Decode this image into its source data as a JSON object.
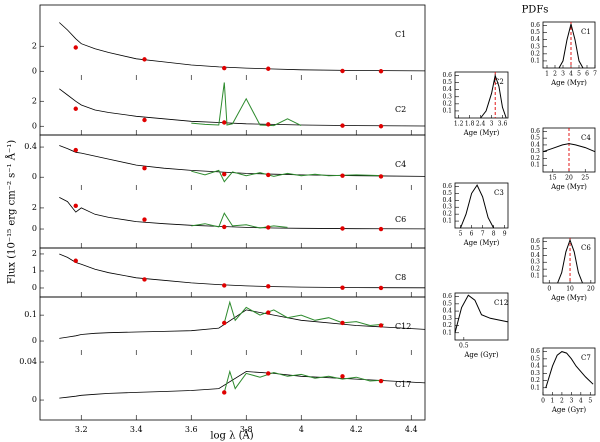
{
  "figure": {
    "ylabel": "Flux (10⁻¹⁵ erg cm⁻² s⁻¹ Å⁻¹)",
    "xlabel": "log λ (Å)",
    "pdf_title": "PDFs"
  },
  "chart_data": [
    {
      "type": "line",
      "label": "C1",
      "xlim": [
        3.05,
        4.45
      ],
      "xticks": [
        3.2,
        3.4,
        3.6,
        3.8,
        4,
        4.2,
        4.4
      ],
      "ylim": [
        -0.7,
        5.3
      ],
      "yticks": [
        0,
        2
      ],
      "series": [
        {
          "color": "#000000",
          "x": [
            3.12,
            3.15,
            3.18,
            3.2,
            3.25,
            3.3,
            3.4,
            3.5,
            3.6,
            3.7,
            3.8,
            3.9,
            4.0,
            4.2,
            4.45
          ],
          "values": [
            3.9,
            3.3,
            2.6,
            2.2,
            1.8,
            1.5,
            1.0,
            0.75,
            0.5,
            0.35,
            0.25,
            0.18,
            0.12,
            0.06,
            0.03
          ]
        },
        {
          "color": "#e00000",
          "marker": "dot",
          "x": [
            3.18,
            3.43,
            3.72,
            3.88,
            4.15,
            4.29
          ],
          "values": [
            1.9,
            0.95,
            0.25,
            0.2,
            0.02,
            0.0
          ]
        }
      ]
    },
    {
      "type": "line",
      "label": "C2",
      "xlim": [
        3.05,
        4.45
      ],
      "xticks": [
        3.2,
        3.4,
        3.6,
        3.8,
        4,
        4.2,
        4.4
      ],
      "ylim": [
        -0.7,
        3.7
      ],
      "yticks": [
        0,
        2
      ],
      "series": [
        {
          "color": "#000000",
          "x": [
            3.12,
            3.15,
            3.18,
            3.2,
            3.25,
            3.3,
            3.4,
            3.5,
            3.6,
            3.7,
            3.8,
            3.9,
            4.0,
            4.2,
            4.45
          ],
          "values": [
            3.0,
            2.5,
            2.0,
            1.7,
            1.3,
            1.1,
            0.8,
            0.6,
            0.4,
            0.3,
            0.2,
            0.15,
            0.1,
            0.05,
            0.02
          ]
        },
        {
          "color": "#2e8b2e",
          "x": [
            3.6,
            3.65,
            3.7,
            3.72,
            3.73,
            3.75,
            3.8,
            3.85,
            3.9,
            3.95,
            4.0
          ],
          "values": [
            0.25,
            0.15,
            0.1,
            3.5,
            0.1,
            0.2,
            2.2,
            0.1,
            0.05,
            0.6,
            0.05
          ]
        },
        {
          "color": "#e00000",
          "marker": "dot",
          "x": [
            3.18,
            3.43,
            3.72,
            3.88,
            4.15,
            4.29
          ],
          "values": [
            1.4,
            0.5,
            0.3,
            0.15,
            0.05,
            0.0
          ]
        }
      ]
    },
    {
      "type": "line",
      "label": "C4",
      "xlim": [
        3.05,
        4.45
      ],
      "xticks": [
        3.2,
        3.4,
        3.6,
        3.8,
        4,
        4.2,
        4.4
      ],
      "ylim": [
        -0.17,
        0.56
      ],
      "yticks": [
        0,
        0.4
      ],
      "series": [
        {
          "color": "#000000",
          "x": [
            3.12,
            3.15,
            3.18,
            3.2,
            3.25,
            3.3,
            3.4,
            3.5,
            3.6,
            3.7,
            3.8,
            3.9,
            4.0,
            4.2,
            4.45
          ],
          "values": [
            0.42,
            0.38,
            0.33,
            0.32,
            0.28,
            0.24,
            0.16,
            0.12,
            0.09,
            0.07,
            0.05,
            0.04,
            0.03,
            0.02,
            0.01
          ]
        },
        {
          "color": "#2e8b2e",
          "x": [
            3.6,
            3.65,
            3.7,
            3.72,
            3.75,
            3.8,
            3.85,
            3.9,
            3.95,
            4.0,
            4.05,
            4.1,
            4.2,
            4.3
          ],
          "values": [
            0.08,
            0.03,
            0.09,
            -0.06,
            0.07,
            0.02,
            0.06,
            0.01,
            0.05,
            0.02,
            0.04,
            0.02,
            0.03,
            0.02
          ]
        },
        {
          "color": "#e00000",
          "marker": "dot",
          "x": [
            3.18,
            3.43,
            3.72,
            3.88,
            4.15,
            4.29
          ],
          "values": [
            0.36,
            0.12,
            0.04,
            0.03,
            0.02,
            0.01
          ]
        }
      ]
    },
    {
      "type": "line",
      "label": "C6",
      "xlim": [
        3.05,
        4.45
      ],
      "xticks": [
        3.2,
        3.4,
        3.6,
        3.8,
        4,
        4.2,
        4.4
      ],
      "ylim": [
        -1.8,
        3.7
      ],
      "yticks": [
        0,
        2
      ],
      "series": [
        {
          "color": "#000000",
          "x": [
            3.12,
            3.15,
            3.18,
            3.2,
            3.25,
            3.3,
            3.4,
            3.5,
            3.6,
            3.7,
            3.8,
            3.9,
            4.0,
            4.2,
            4.45
          ],
          "values": [
            3.0,
            2.6,
            1.6,
            2.0,
            1.4,
            1.1,
            0.7,
            0.5,
            0.35,
            0.25,
            0.15,
            0.1,
            0.07,
            0.03,
            0.01
          ]
        },
        {
          "color": "#2e8b2e",
          "x": [
            3.6,
            3.65,
            3.7,
            3.72,
            3.75,
            3.8,
            3.85,
            3.9,
            3.95
          ],
          "values": [
            0.3,
            0.5,
            0.2,
            1.5,
            0.3,
            0.4,
            0.1,
            0.3,
            0.15
          ]
        },
        {
          "color": "#e00000",
          "marker": "dot",
          "x": [
            3.18,
            3.43,
            3.72,
            3.88,
            4.15,
            4.29
          ],
          "values": [
            2.2,
            0.9,
            0.2,
            0.15,
            0.05,
            0.0
          ]
        }
      ]
    },
    {
      "type": "line",
      "label": "C8",
      "xlim": [
        3.05,
        4.45
      ],
      "xticks": [
        3.2,
        3.4,
        3.6,
        3.8,
        4,
        4.2,
        4.4
      ],
      "ylim": [
        -0.53,
        2.35
      ],
      "yticks": [
        0,
        1,
        2
      ],
      "series": [
        {
          "color": "#000000",
          "x": [
            3.12,
            3.15,
            3.18,
            3.2,
            3.25,
            3.3,
            3.4,
            3.5,
            3.6,
            3.7,
            3.8,
            3.9,
            4.0,
            4.2,
            4.45
          ],
          "values": [
            2.0,
            1.8,
            1.5,
            1.4,
            1.1,
            0.9,
            0.6,
            0.45,
            0.3,
            0.2,
            0.12,
            0.08,
            0.05,
            0.02,
            0.01
          ]
        },
        {
          "color": "#e00000",
          "marker": "dot",
          "x": [
            3.18,
            3.43,
            3.72,
            3.88,
            4.15,
            4.29
          ],
          "values": [
            1.6,
            0.5,
            0.15,
            0.1,
            0.02,
            0.0
          ]
        }
      ]
    },
    {
      "type": "line",
      "label": "C12",
      "xlim": [
        3.05,
        4.45
      ],
      "xticks": [
        3.2,
        3.4,
        3.6,
        3.8,
        4,
        4.2,
        4.4
      ],
      "ylim": [
        -0.054,
        0.17
      ],
      "yticks": [
        0,
        0.1
      ],
      "series": [
        {
          "color": "#000000",
          "x": [
            3.12,
            3.15,
            3.18,
            3.2,
            3.25,
            3.3,
            3.4,
            3.5,
            3.6,
            3.7,
            3.8,
            3.9,
            4.0,
            4.2,
            4.45
          ],
          "values": [
            0.01,
            0.015,
            0.02,
            0.025,
            0.03,
            0.032,
            0.035,
            0.037,
            0.04,
            0.05,
            0.12,
            0.1,
            0.08,
            0.06,
            0.045
          ]
        },
        {
          "color": "#2e8b2e",
          "x": [
            3.72,
            3.74,
            3.76,
            3.8,
            3.85,
            3.9,
            3.95,
            4.0,
            4.05,
            4.1,
            4.15,
            4.2,
            4.25,
            4.3
          ],
          "values": [
            0.07,
            0.15,
            0.08,
            0.13,
            0.1,
            0.12,
            0.09,
            0.1,
            0.08,
            0.09,
            0.07,
            0.075,
            0.06,
            0.065
          ]
        },
        {
          "color": "#e00000",
          "marker": "dot",
          "x": [
            3.72,
            3.88,
            4.15,
            4.29
          ],
          "values": [
            0.07,
            0.11,
            0.07,
            0.06
          ]
        }
      ]
    },
    {
      "type": "line",
      "label": "C17",
      "xlim": [
        3.05,
        4.45
      ],
      "xticks": [
        3.2,
        3.4,
        3.6,
        3.8,
        4,
        4.2,
        4.4
      ],
      "ylim": [
        -0.021,
        0.0474
      ],
      "yticks": [
        0,
        0.04
      ],
      "series": [
        {
          "color": "#000000",
          "x": [
            3.12,
            3.15,
            3.18,
            3.2,
            3.25,
            3.3,
            3.4,
            3.5,
            3.6,
            3.7,
            3.8,
            3.9,
            4.0,
            4.2,
            4.45
          ],
          "values": [
            0.002,
            0.003,
            0.004,
            0.005,
            0.006,
            0.007,
            0.008,
            0.009,
            0.01,
            0.012,
            0.03,
            0.028,
            0.025,
            0.022,
            0.018
          ]
        },
        {
          "color": "#2e8b2e",
          "x": [
            3.72,
            3.74,
            3.76,
            3.8,
            3.85,
            3.9,
            3.95,
            4.0,
            4.05,
            4.1,
            4.15,
            4.2,
            4.25,
            4.3
          ],
          "values": [
            0.008,
            0.03,
            0.012,
            0.028,
            0.024,
            0.029,
            0.025,
            0.027,
            0.023,
            0.025,
            0.022,
            0.024,
            0.02,
            0.021
          ]
        },
        {
          "color": "#e00000",
          "marker": "dot",
          "x": [
            3.72,
            3.88,
            4.15,
            4.29
          ],
          "values": [
            0.008,
            0.028,
            0.025,
            0.02
          ]
        }
      ]
    },
    {
      "type": "line",
      "label": "C1",
      "xlabel": "Age (Myr)",
      "xlim": [
        0.5,
        7
      ],
      "xticks": [
        1,
        2,
        3,
        4,
        5,
        6,
        7
      ],
      "ylim": [
        0,
        0.65
      ],
      "yticks": [
        0.1,
        0.2,
        0.3,
        0.4,
        0.5,
        0.6
      ],
      "series": [
        {
          "color": "#000000",
          "x": [
            2.5,
            3,
            3.5,
            4,
            4.5,
            5,
            5.5
          ],
          "values": [
            0,
            0.1,
            0.4,
            0.62,
            0.4,
            0.1,
            0
          ]
        }
      ],
      "marker": {
        "value": 4,
        "color": "#e00000"
      }
    },
    {
      "type": "line",
      "label": "C2",
      "xlabel": "Age (Myr)",
      "xlim": [
        1,
        3.9
      ],
      "xticks": [
        1.2,
        1.8,
        2.4,
        3,
        3.6
      ],
      "ylim": [
        0,
        0.65
      ],
      "yticks": [
        0.1,
        0.2,
        0.3,
        0.4,
        0.5,
        0.6
      ],
      "series": [
        {
          "color": "#000000",
          "x": [
            2.4,
            2.7,
            3,
            3.2,
            3.4,
            3.6,
            3.8
          ],
          "values": [
            0,
            0.1,
            0.35,
            0.6,
            0.45,
            0.15,
            0
          ]
        }
      ],
      "marker": {
        "value": 3.2,
        "color": "#e00000"
      }
    },
    {
      "type": "line",
      "label": "C4",
      "xlabel": "Age (Myr)",
      "xlim": [
        12,
        28
      ],
      "xticks": [
        15,
        20,
        25
      ],
      "ylim": [
        0,
        0.65
      ],
      "yticks": [
        0.1,
        0.2,
        0.3,
        0.4,
        0.5,
        0.6
      ],
      "series": [
        {
          "color": "#000000",
          "x": [
            12,
            15,
            18,
            20,
            22,
            25,
            28
          ],
          "values": [
            0.3,
            0.35,
            0.4,
            0.42,
            0.4,
            0.36,
            0.3
          ]
        }
      ],
      "marker": {
        "value": 20,
        "color": "#e00000"
      }
    },
    {
      "type": "line",
      "label": "C3",
      "xlabel": "Age (Myr)",
      "xlim": [
        4.5,
        9.3
      ],
      "xticks": [
        5,
        6,
        7,
        8,
        9
      ],
      "ylim": [
        0,
        0.65
      ],
      "yticks": [
        0.1,
        0.2,
        0.3,
        0.4,
        0.5,
        0.6
      ],
      "series": [
        {
          "color": "#000000",
          "x": [
            5,
            5.5,
            6,
            6.5,
            7,
            7.5,
            8
          ],
          "values": [
            0,
            0.2,
            0.5,
            0.62,
            0.45,
            0.15,
            0
          ]
        }
      ]
    },
    {
      "type": "line",
      "label": "C6",
      "xlabel": "Age (Myr)",
      "xlim": [
        -3,
        22
      ],
      "xticks": [
        0,
        10,
        20
      ],
      "ylim": [
        0,
        0.65
      ],
      "yticks": [
        0.1,
        0.2,
        0.3,
        0.4,
        0.5,
        0.6
      ],
      "series": [
        {
          "color": "#000000",
          "x": [
            4,
            6,
            8,
            10,
            12,
            14,
            16
          ],
          "values": [
            0,
            0.15,
            0.45,
            0.62,
            0.45,
            0.15,
            0
          ]
        }
      ],
      "marker": {
        "value": 10,
        "color": "#e00000"
      }
    },
    {
      "type": "line",
      "label": "C12",
      "xlabel": "Age (Gyr)",
      "xlim": [
        0.3,
        1.5
      ],
      "xticks": [
        0.5
      ],
      "ylim": [
        0,
        0.65
      ],
      "yticks": [
        0.1,
        0.2,
        0.3,
        0.4,
        0.5,
        0.6
      ],
      "series": [
        {
          "color": "#000000",
          "x": [
            0.3,
            0.45,
            0.6,
            0.75,
            0.9,
            1.1,
            1.5
          ],
          "values": [
            0.1,
            0.45,
            0.62,
            0.55,
            0.35,
            0.3,
            0.25
          ]
        }
      ]
    },
    {
      "type": "line",
      "label": "C7",
      "xlabel": "Age (Gyr)",
      "xlim": [
        0,
        5.5
      ],
      "xticks": [
        0,
        1,
        2,
        3,
        4,
        5
      ],
      "ylim": [
        0,
        0.65
      ],
      "yticks": [
        0.1,
        0.2,
        0.3,
        0.4,
        0.5,
        0.6
      ],
      "series": [
        {
          "color": "#000000",
          "x": [
            0.3,
            1,
            1.5,
            2,
            2.5,
            3,
            3.5,
            4.5,
            5.3
          ],
          "values": [
            0.1,
            0.4,
            0.55,
            0.6,
            0.58,
            0.5,
            0.4,
            0.25,
            0.15
          ]
        }
      ]
    }
  ]
}
